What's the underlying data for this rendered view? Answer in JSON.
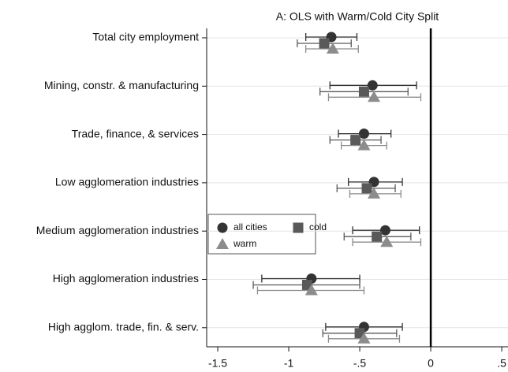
{
  "chart_data": {
    "type": "coefplot",
    "subtitle": "A: OLS with Warm/Cold City Split",
    "categories": [
      "Total city employment",
      "Mining, constr. & manufacturing",
      "Trade, finance, & services",
      "Low agglomeration industries",
      "Medium agglomeration industries",
      "High agglomeration industries",
      "High agglom. trade, fin. & serv."
    ],
    "series": [
      {
        "name": "all cities",
        "color": "#333333",
        "marker": "circle",
        "values": [
          -0.7,
          -0.41,
          -0.47,
          -0.4,
          -0.32,
          -0.84,
          -0.47
        ],
        "lower": [
          -0.88,
          -0.71,
          -0.65,
          -0.58,
          -0.55,
          -1.19,
          -0.74
        ],
        "upper": [
          -0.52,
          -0.1,
          -0.28,
          -0.2,
          -0.08,
          -0.5,
          -0.2
        ]
      },
      {
        "name": "cold",
        "color": "#595959",
        "marker": "square",
        "values": [
          -0.75,
          -0.47,
          -0.53,
          -0.45,
          -0.38,
          -0.87,
          -0.5
        ],
        "lower": [
          -0.94,
          -0.78,
          -0.71,
          -0.66,
          -0.61,
          -1.25,
          -0.76
        ],
        "upper": [
          -0.56,
          -0.16,
          -0.35,
          -0.25,
          -0.14,
          -0.5,
          -0.24
        ]
      },
      {
        "name": "warm",
        "color": "#8c8c8c",
        "marker": "triangle",
        "values": [
          -0.69,
          -0.4,
          -0.47,
          -0.4,
          -0.31,
          -0.84,
          -0.47
        ],
        "lower": [
          -0.88,
          -0.72,
          -0.63,
          -0.57,
          -0.55,
          -1.22,
          -0.72
        ],
        "upper": [
          -0.51,
          -0.07,
          -0.31,
          -0.21,
          -0.07,
          -0.47,
          -0.22
        ]
      }
    ],
    "xlim": [
      -1.578,
      0.544
    ],
    "xticks": [
      -1.5,
      -1,
      {
        "value": -0.5,
        "label": "-.5"
      },
      0,
      {
        "value": 0.5,
        "label": ".5"
      }
    ],
    "reference_line": 0,
    "grid": true
  }
}
